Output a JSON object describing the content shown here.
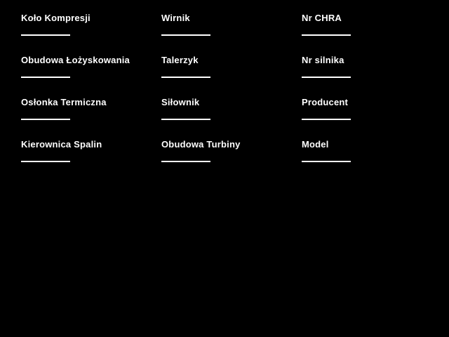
{
  "theme": {
    "background_color": "#000000",
    "text_color": "#ffffff",
    "input_line_color": "#ffffff"
  },
  "form": {
    "columns": [
      {
        "fields": [
          {
            "label": "Koło Kompresji",
            "value": ""
          },
          {
            "label": "Obudowa Łożyskowania",
            "value": ""
          },
          {
            "label": "Osłonka Termiczna",
            "value": ""
          },
          {
            "label": "Kierownica Spalin",
            "value": ""
          }
        ]
      },
      {
        "fields": [
          {
            "label": "Wirnik",
            "value": ""
          },
          {
            "label": "Talerzyk",
            "value": ""
          },
          {
            "label": "Siłownik",
            "value": ""
          },
          {
            "label": "Obudowa Turbiny",
            "value": ""
          }
        ]
      },
      {
        "fields": [
          {
            "label": "Nr CHRA",
            "value": ""
          },
          {
            "label": "Nr silnika",
            "value": ""
          },
          {
            "label": "Producent",
            "value": ""
          },
          {
            "label": "Model",
            "value": ""
          }
        ]
      }
    ]
  }
}
